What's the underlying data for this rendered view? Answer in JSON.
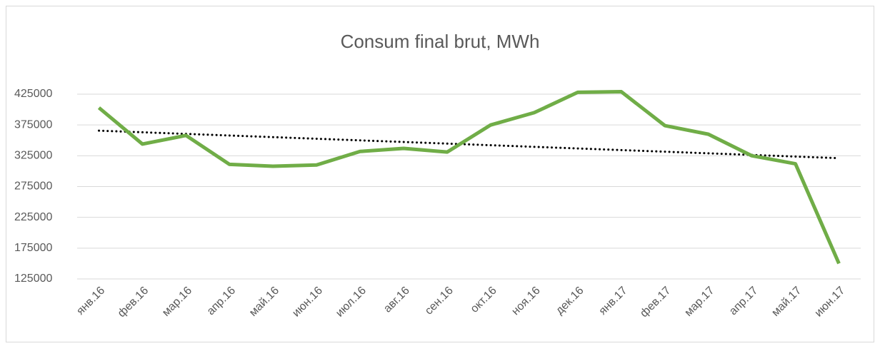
{
  "chart_data": {
    "type": "line",
    "title": "Consum final brut, MWh",
    "categories": [
      "янв.16",
      "фев.16",
      "мар.16",
      "апр.16",
      "май.16",
      "июн.16",
      "июл.16",
      "авг.16",
      "сен.16",
      "окт.16",
      "ноя.16",
      "дек.16",
      "янв.17",
      "фев.17",
      "мар.17",
      "апр.17",
      "май.17",
      "июн.17"
    ],
    "series": [
      {
        "name": "Consum final brut, MWh",
        "color": "#70ad47",
        "values": [
          403000,
          344000,
          358000,
          311000,
          308000,
          310000,
          332000,
          337000,
          331000,
          375000,
          395000,
          428000,
          429000,
          374000,
          360000,
          325000,
          312000,
          150000
        ]
      }
    ],
    "ylim": [
      125000,
      425000
    ],
    "yticks": [
      125000,
      175000,
      225000,
      275000,
      325000,
      375000,
      425000
    ],
    "grid": true,
    "trendline": "linear"
  }
}
